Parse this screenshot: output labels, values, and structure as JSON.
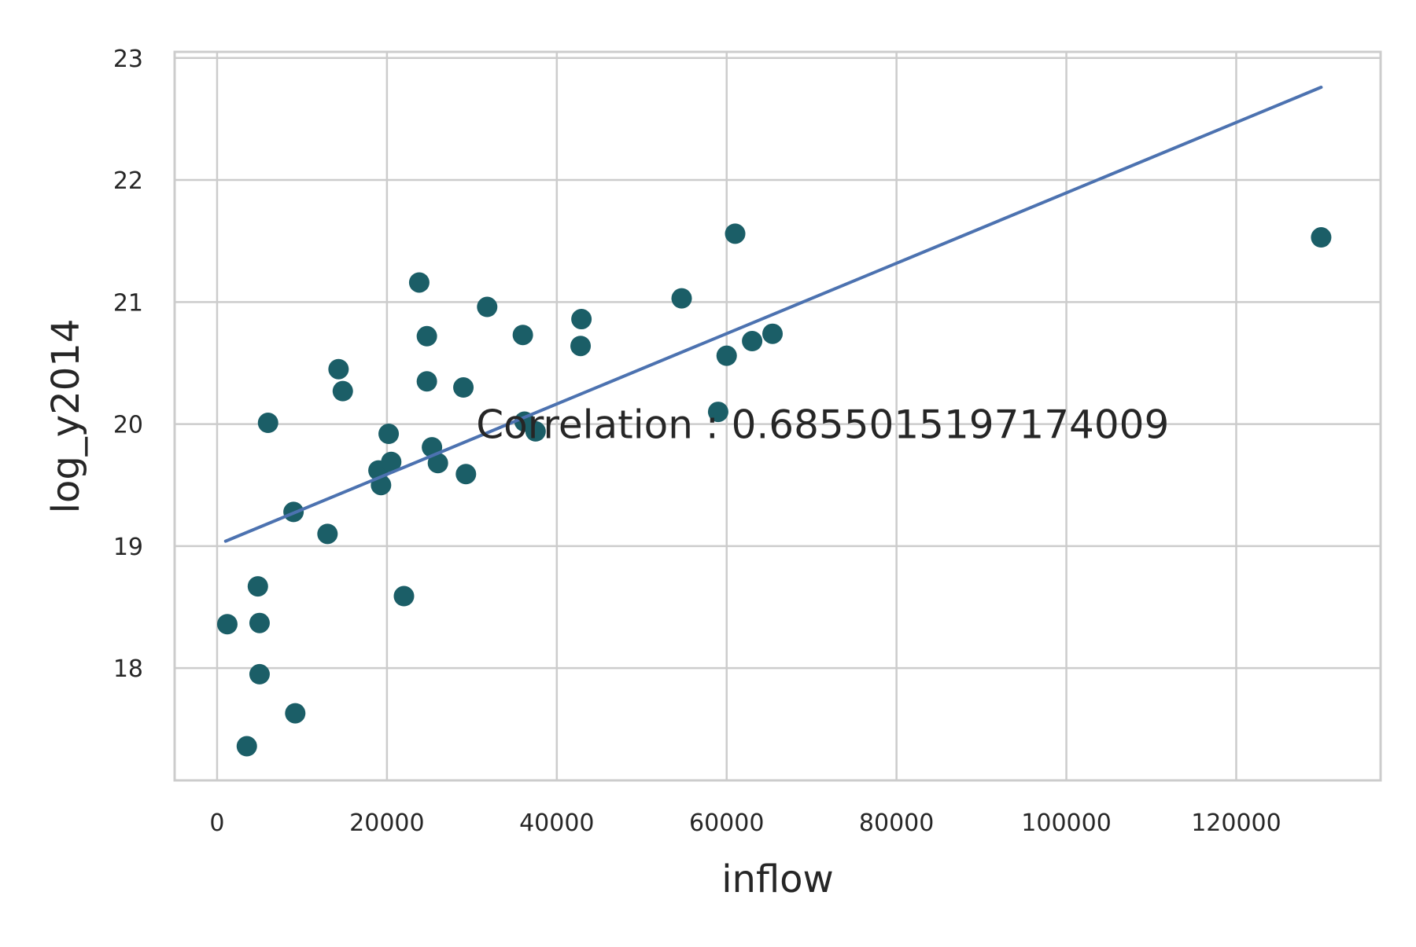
{
  "chart_data": {
    "type": "scatter",
    "title": "",
    "xlabel": "inflow",
    "ylabel": "log_y2014",
    "xlim": [
      -5000,
      137000
    ],
    "ylim": [
      17.08,
      23.05
    ],
    "xticks": [
      0,
      20000,
      40000,
      60000,
      80000,
      100000,
      120000
    ],
    "xtick_labels": [
      "0",
      "20000",
      "40000",
      "60000",
      "80000",
      "100000",
      "120000"
    ],
    "yticks": [
      18,
      19,
      20,
      21,
      22,
      23
    ],
    "ytick_labels": [
      "18",
      "19",
      "20",
      "21",
      "22",
      "23"
    ],
    "grid": true,
    "annotation": {
      "text": "Correlation : 0.6855015197174009",
      "x": 30500,
      "y": 20
    },
    "points": [
      {
        "x": 1200,
        "y": 18.36
      },
      {
        "x": 3500,
        "y": 17.36
      },
      {
        "x": 4800,
        "y": 18.67
      },
      {
        "x": 5000,
        "y": 18.37
      },
      {
        "x": 5000,
        "y": 17.95
      },
      {
        "x": 6000,
        "y": 20.01
      },
      {
        "x": 9000,
        "y": 19.28
      },
      {
        "x": 9200,
        "y": 17.63
      },
      {
        "x": 13000,
        "y": 19.1
      },
      {
        "x": 14300,
        "y": 20.45
      },
      {
        "x": 14800,
        "y": 20.27
      },
      {
        "x": 19000,
        "y": 19.62
      },
      {
        "x": 19300,
        "y": 19.5
      },
      {
        "x": 20200,
        "y": 19.92
      },
      {
        "x": 20500,
        "y": 19.69
      },
      {
        "x": 22000,
        "y": 18.59
      },
      {
        "x": 23800,
        "y": 21.16
      },
      {
        "x": 24700,
        "y": 20.72
      },
      {
        "x": 24700,
        "y": 20.35
      },
      {
        "x": 25300,
        "y": 19.81
      },
      {
        "x": 26000,
        "y": 19.68
      },
      {
        "x": 29000,
        "y": 20.3
      },
      {
        "x": 29300,
        "y": 19.59
      },
      {
        "x": 31800,
        "y": 20.96
      },
      {
        "x": 36000,
        "y": 20.73
      },
      {
        "x": 36200,
        "y": 20.02
      },
      {
        "x": 37500,
        "y": 19.94
      },
      {
        "x": 42800,
        "y": 20.64
      },
      {
        "x": 42900,
        "y": 20.86
      },
      {
        "x": 54700,
        "y": 21.03
      },
      {
        "x": 59000,
        "y": 20.1
      },
      {
        "x": 60000,
        "y": 20.56
      },
      {
        "x": 61000,
        "y": 21.56
      },
      {
        "x": 63000,
        "y": 20.68
      },
      {
        "x": 65400,
        "y": 20.74
      },
      {
        "x": 130000,
        "y": 21.53
      }
    ],
    "fit_line": {
      "x": [
        1000,
        130000
      ],
      "y": [
        19.04,
        22.76
      ]
    },
    "colors": {
      "points": "#1b5e67",
      "fit_line": "#4c72b0",
      "grid": "#cccccc",
      "spine": "#cccccc",
      "text": "#262626"
    }
  }
}
